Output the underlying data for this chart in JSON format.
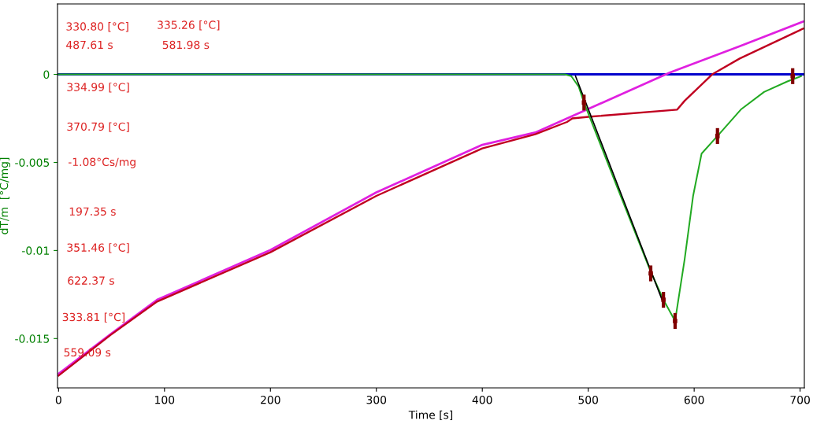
{
  "chart_data": {
    "type": "line",
    "xlabel": "Time [s]",
    "ylabel": "dT/m  [°C/mg]",
    "xlim": [
      -1,
      704
    ],
    "ylim": [
      -0.0178,
      0.004
    ],
    "xticks": [
      0,
      100,
      200,
      300,
      400,
      500,
      600,
      700
    ],
    "yticks": [
      0,
      -0.005,
      -0.01,
      -0.015
    ],
    "grid": false,
    "legend": false,
    "series": [
      {
        "color": "#0000cc",
        "x": [
          0,
          704
        ],
        "values": [
          0,
          0
        ]
      },
      {
        "color": "#e020e0",
        "x": [
          0,
          49,
          93,
          200,
          300,
          400,
          450,
          480,
          577,
          643,
          703
        ],
        "values": [
          -0.017,
          -0.01475,
          -0.0128,
          -0.00997,
          -0.0067,
          -0.004,
          -0.0033,
          -0.0025,
          0.0001,
          0.0016,
          0.003
        ]
      },
      {
        "color": "#c00020",
        "x": [
          0,
          49,
          93,
          200,
          300,
          400,
          450,
          480,
          485,
          502,
          584,
          591,
          617,
          643,
          703
        ],
        "values": [
          -0.0171,
          -0.0148,
          -0.0129,
          -0.0101,
          -0.0069,
          -0.0042,
          -0.0034,
          -0.0027,
          -0.0025,
          -0.0024,
          -0.002,
          -0.0015,
          0.0,
          0.0009,
          0.0026
        ]
      },
      {
        "color": "#22aa22",
        "x": [
          0,
          478,
          484,
          491,
          496,
          528,
          559,
          571,
          582,
          591,
          599,
          607,
          622,
          644,
          666,
          688,
          701
        ],
        "values": [
          0,
          0,
          -0.0001,
          -0.0007,
          -0.0016,
          -0.0065,
          -0.0112,
          -0.0128,
          -0.014,
          -0.0105,
          -0.0069,
          -0.0045,
          -0.0035,
          -0.002,
          -0.001,
          -0.0004,
          -0.0001
        ]
      },
      {
        "color": "#000000",
        "x": [
          488,
          571
        ],
        "values": [
          -0.0001,
          -0.013
        ]
      },
      {
        "type": "scatter",
        "marker": "square",
        "color": "#800000",
        "x": [
          496,
          559,
          571,
          582,
          622,
          693
        ],
        "values": [
          -0.0016,
          -0.0113,
          -0.0128,
          -0.014,
          -0.0035,
          -0.0001
        ],
        "errors": [
          0.00045,
          0.00045,
          0.00045,
          0.00045,
          0.00045,
          0.00045
        ]
      }
    ],
    "annotations": [
      "330.80 [°C]",
      "487.61 s",
      "335.26 [°C]",
      "581.98 s",
      "334.99 [°C]",
      "370.79 [°C]",
      "-1.08°Cs/mg",
      "197.35 s",
      "351.46 [°C]",
      "622.37 s",
      "333.81 [°C]",
      "559.09 s"
    ]
  }
}
